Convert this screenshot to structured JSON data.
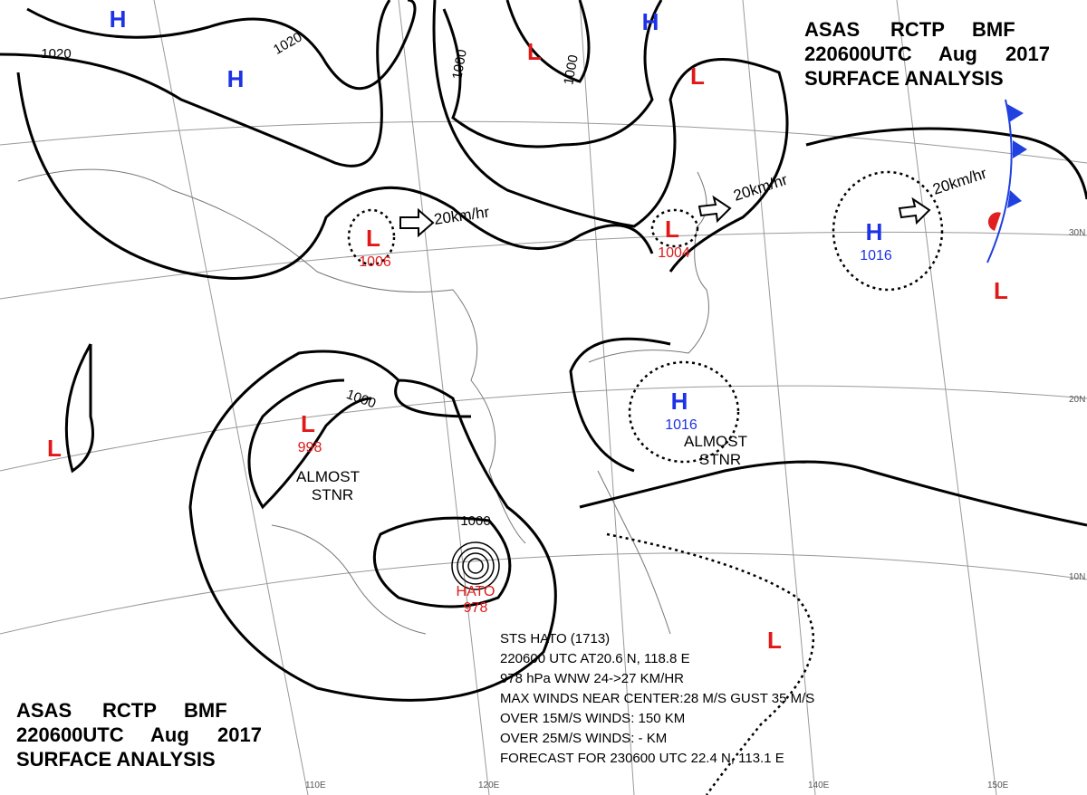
{
  "header_top": {
    "agency": "ASAS",
    "station": "RCTP",
    "code": "BMF",
    "time": "220600UTC",
    "month": "Aug",
    "year": "2017",
    "title": "SURFACE ANALYSIS"
  },
  "header_bottom": {
    "agency": "ASAS",
    "station": "RCTP",
    "code": "BMF",
    "time": "220600UTC",
    "month": "Aug",
    "year": "2017",
    "title": "SURFACE ANALYSIS"
  },
  "systems": [
    {
      "symbol": "H"
    },
    {
      "symbol": "H"
    },
    {
      "symbol": "H"
    },
    {
      "symbol": "L"
    },
    {
      "symbol": "L"
    },
    {
      "symbol": "L",
      "pressure": 1006
    },
    {
      "symbol": "L",
      "pressure": 1004
    },
    {
      "symbol": "H",
      "pressure": 1016
    },
    {
      "symbol": "L"
    },
    {
      "symbol": "H",
      "pressure": 1016
    },
    {
      "symbol": "L",
      "pressure": 998
    },
    {
      "symbol": "L"
    },
    {
      "symbol": "L"
    }
  ],
  "isobar_labels": [
    1020,
    1020,
    1000,
    1000,
    1000,
    1000
  ],
  "motion_labels": [
    "20km/hr",
    "20km/hr",
    "20km/hr"
  ],
  "stationary_labels": [
    [
      "ALMOST",
      "STNR"
    ],
    [
      "ALMOST",
      "STNR"
    ]
  ],
  "typhoon": {
    "name": "HATO",
    "pressure": 978,
    "info": [
      "STS  HATO  (1713)",
      "220600 UTC  AT20.6 N, 118.8 E",
      "978 hPa  WNW  24->27 KM/HR",
      "MAX WINDS NEAR CENTER:28 M/S GUST 35 M/S",
      "OVER 15M/S WINDS: 150 KM",
      "OVER 25M/S WINDS: - KM",
      "FORECAST FOR 230600 UTC 22.4 N, 113.1 E"
    ]
  },
  "latitude_labels": [
    "30N",
    "20N",
    "10N"
  ],
  "longitude_labels": [
    "110E",
    "120E",
    "140E",
    "150E"
  ]
}
